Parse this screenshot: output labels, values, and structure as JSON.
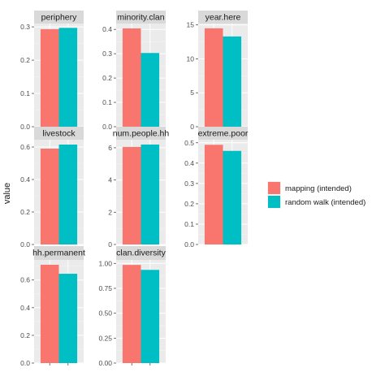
{
  "chart_data": {
    "type": "bar",
    "ylabel": "value",
    "xlabel": "",
    "grid": true,
    "legend_position": "right",
    "series": [
      {
        "name": "mapping (intended)",
        "color": "#F8766D"
      },
      {
        "name": "random walk (intended)",
        "color": "#00BFC4"
      }
    ],
    "panels": [
      {
        "title": "periphery",
        "values": [
          0.293,
          0.297
        ],
        "ylim": [
          0,
          0.31
        ],
        "ticks": [
          0.0,
          0.1,
          0.2,
          0.3
        ],
        "tick_labels": [
          "0.0",
          "0.1",
          "0.2",
          "0.3"
        ]
      },
      {
        "title": "minority.clan",
        "values": [
          0.404,
          0.303
        ],
        "ylim": [
          0,
          0.424
        ],
        "ticks": [
          0.0,
          0.1,
          0.2,
          0.3,
          0.4
        ],
        "tick_labels": [
          "0.0",
          "0.1",
          "0.2",
          "0.3",
          "0.4"
        ]
      },
      {
        "title": "year.here",
        "values": [
          14.5,
          13.3
        ],
        "ylim": [
          0,
          15.2
        ],
        "ticks": [
          0,
          5,
          10,
          15
        ],
        "tick_labels": [
          "0",
          "5",
          "10",
          "15"
        ]
      },
      {
        "title": "livestock",
        "values": [
          0.59,
          0.615
        ],
        "ylim": [
          0,
          0.645
        ],
        "ticks": [
          0.0,
          0.2,
          0.4,
          0.6
        ],
        "tick_labels": [
          "0.0",
          "0.2",
          "0.4",
          "0.6"
        ]
      },
      {
        "title": "num.people.hh",
        "values": [
          6.05,
          6.2
        ],
        "ylim": [
          0,
          6.5
        ],
        "ticks": [
          0,
          2,
          4,
          6
        ],
        "tick_labels": [
          "0",
          "2",
          "4",
          "6"
        ]
      },
      {
        "title": "extreme.poor",
        "values": [
          0.49,
          0.46
        ],
        "ylim": [
          0,
          0.515
        ],
        "ticks": [
          0.0,
          0.1,
          0.2,
          0.3,
          0.4,
          0.5
        ],
        "tick_labels": [
          "0.0",
          "0.1",
          "0.2",
          "0.3",
          "0.4",
          "0.5"
        ]
      },
      {
        "title": "hh.permanent",
        "values": [
          0.71,
          0.645
        ],
        "ylim": [
          0,
          0.745
        ],
        "ticks": [
          0.0,
          0.2,
          0.4,
          0.6
        ],
        "tick_labels": [
          "0.0",
          "0.2",
          "0.4",
          "0.6"
        ]
      },
      {
        "title": "clan.diversity",
        "values": [
          0.985,
          0.935
        ],
        "ylim": [
          0,
          1.035
        ],
        "ticks": [
          0.0,
          0.25,
          0.5,
          0.75,
          1.0
        ],
        "tick_labels": [
          "0.00",
          "0.25",
          "0.50",
          "0.75",
          "1.00"
        ]
      }
    ]
  }
}
